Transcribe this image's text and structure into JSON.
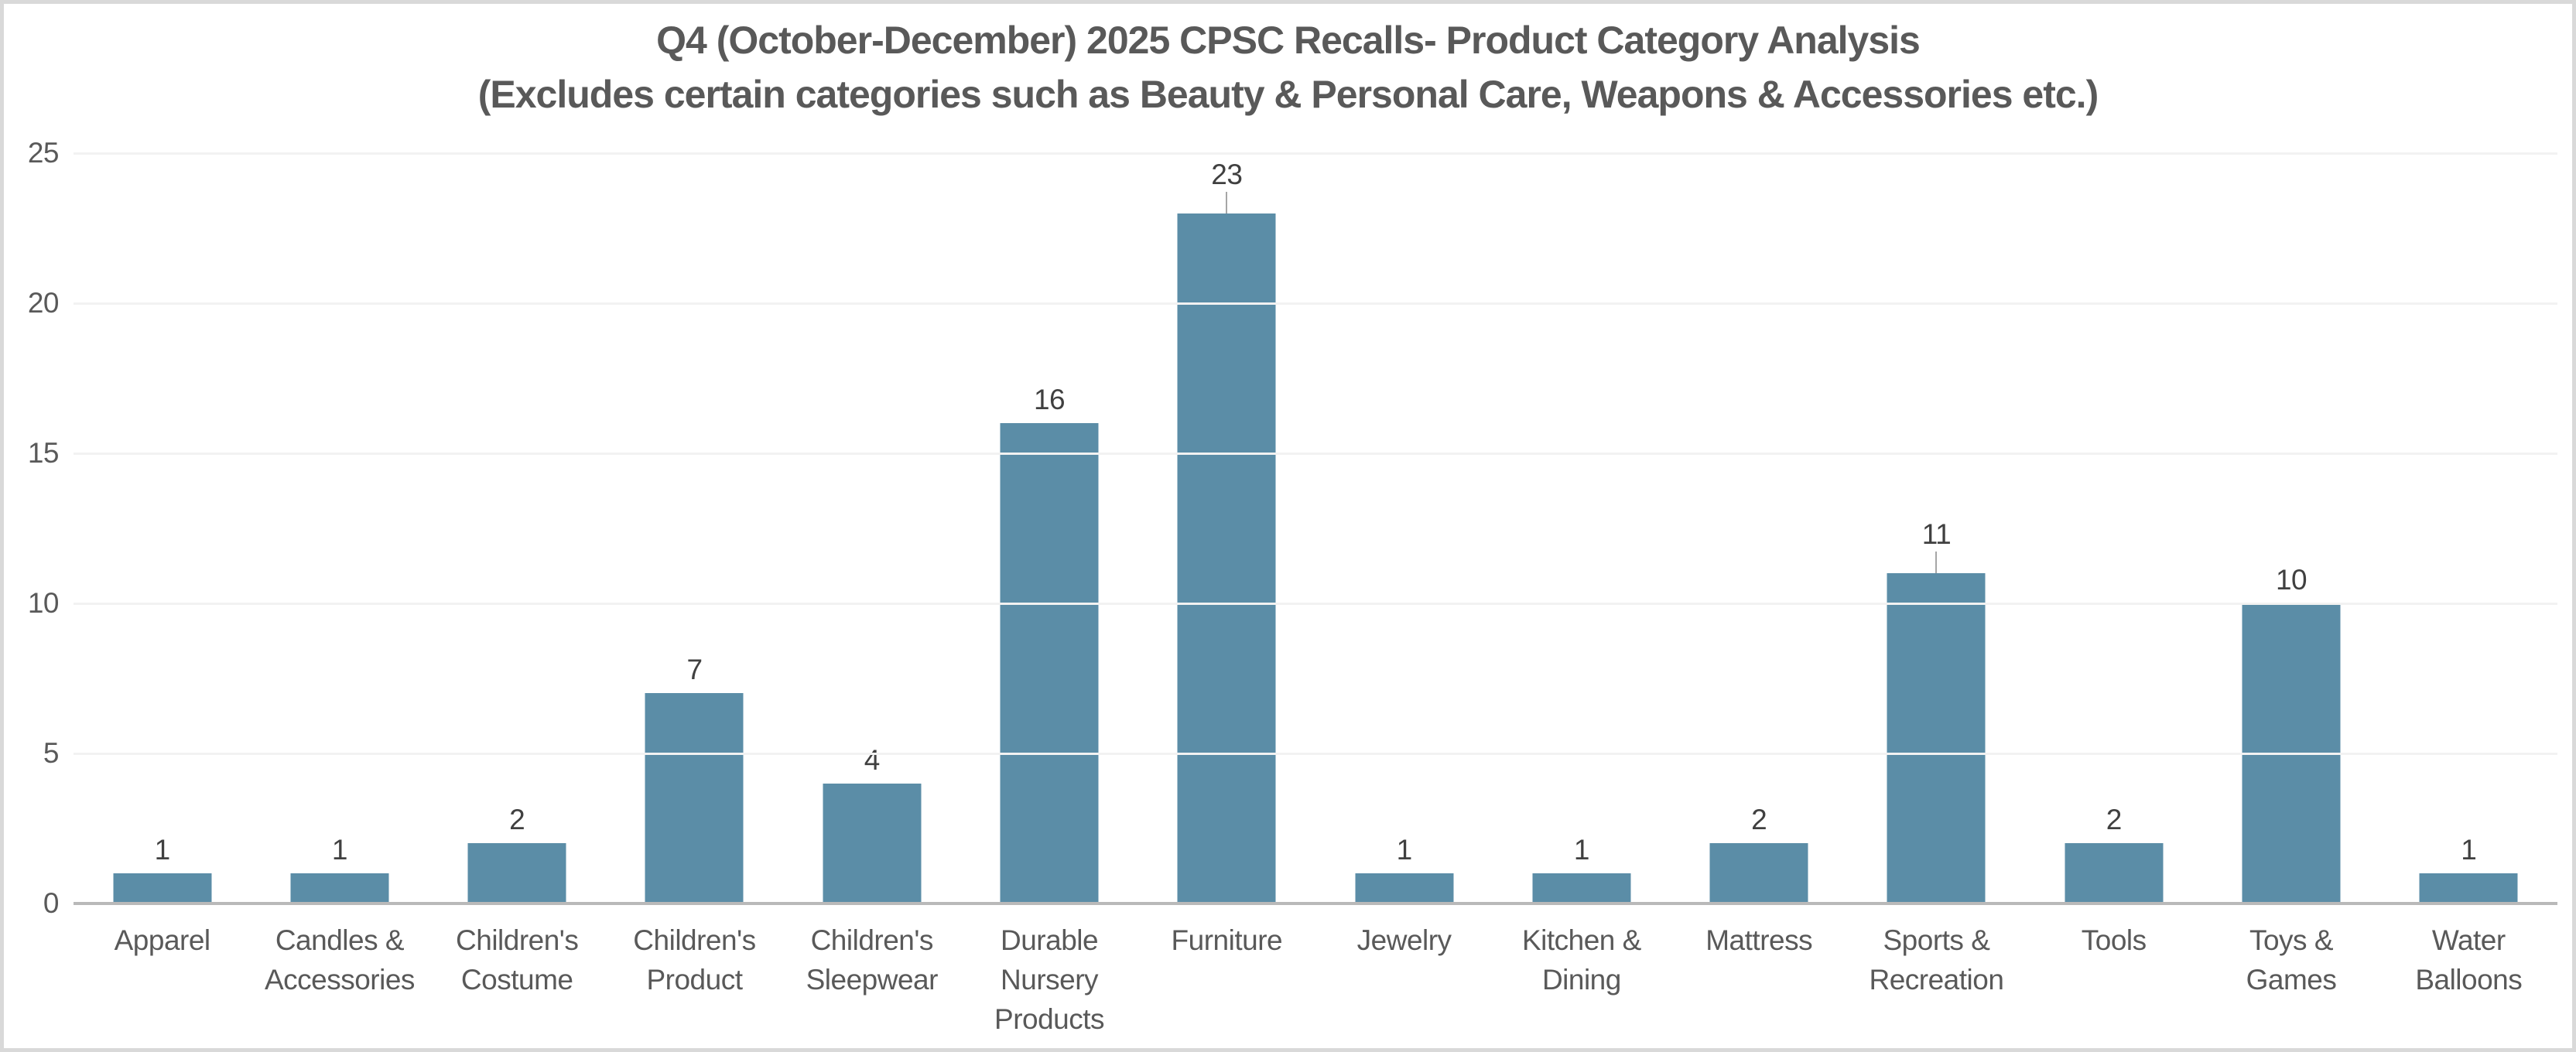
{
  "frame": {
    "background": "#ffffff",
    "edge_color": "#d9d9d9"
  },
  "title": {
    "line1": "Q4 (October-December) 2025 CPSC Recalls- Product Category Analysis",
    "line2": "(Excludes certain categories such as Beauty & Personal Care, Weapons & Accessories etc.)",
    "color": "#595959"
  },
  "chart_data": {
    "type": "bar",
    "title": "Q4 (October-December) 2025 CPSC Recalls- Product Category Analysis (Excludes certain categories such as Beauty & Personal Care, Weapons & Accessories etc.)",
    "categories": [
      "Apparel",
      "Candles & Accessories",
      "Children's Costume",
      "Children's Product",
      "Children's Sleepwear",
      "Durable Nursery Products",
      "Furniture",
      "Jewelry",
      "Kitchen & Dining",
      "Mattress",
      "Sports & Recreation",
      "Tools",
      "Toys & Games",
      "Water Balloons"
    ],
    "category_label_lines": [
      "Apparel",
      "Candles &\nAccessories",
      "Children's\nCostume",
      "Children's\nProduct",
      "Children's\nSleepwear",
      "Durable\nNursery\nProducts",
      "Furniture",
      "Jewelry",
      "Kitchen &\nDining",
      "Mattress",
      "Sports &\nRecreation",
      "Tools",
      "Toys &\nGames",
      "Water\nBalloons"
    ],
    "values": [
      1,
      1,
      2,
      7,
      4,
      16,
      23,
      1,
      1,
      2,
      11,
      2,
      10,
      1
    ],
    "data_labels": [
      "1",
      "1",
      "2",
      "7",
      "4",
      "16",
      "23",
      "1",
      "1",
      "2",
      "11",
      "2",
      "10",
      "1"
    ],
    "leader_line_indices": [
      6,
      10
    ],
    "y_ticks": [
      0,
      5,
      10,
      15,
      20,
      25
    ],
    "ylim": [
      0,
      25
    ],
    "xlabel": "",
    "ylabel": "",
    "grid": "horizontal",
    "legend": "none",
    "bar_color": "#5b8da7",
    "data_label_color": "#404040",
    "axis_text_color": "#595959",
    "gridline_color": "#f2f2f2",
    "axis_line_color": "#b9b9b9",
    "leader_line_color": "#a6a6a6"
  }
}
